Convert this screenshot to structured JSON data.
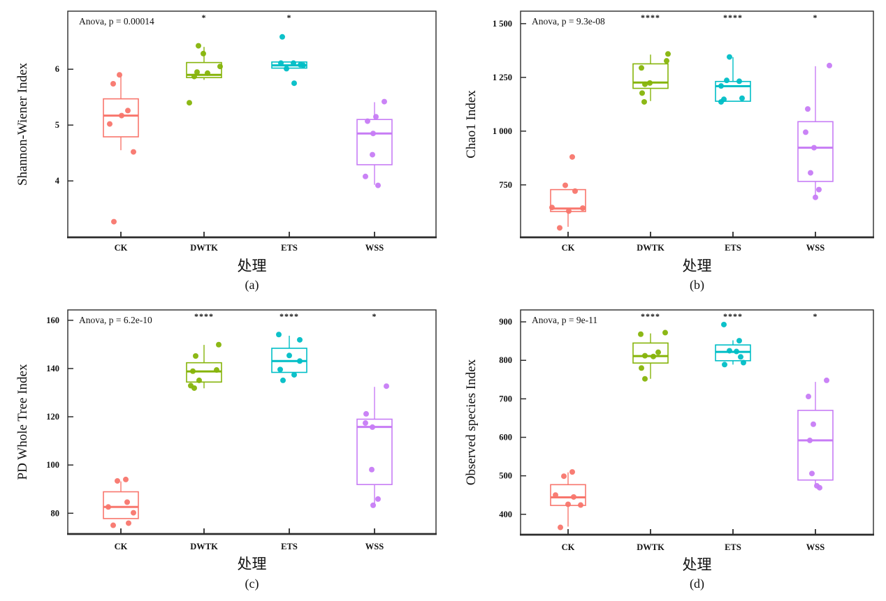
{
  "figure": {
    "background": "#ffffff",
    "axis_color": "#2b2b2b",
    "categories": [
      "CK",
      "DWTK",
      "ETS",
      "WSS"
    ],
    "group_colors": {
      "CK": "#F8766D",
      "DWTK": "#86B40A",
      "ETS": "#00BEC6",
      "WSS": "#C77CF5"
    }
  },
  "chart_data": [
    {
      "type": "boxplot",
      "panel_label": "(a)",
      "ylabel": "Shannon-Wiener Index",
      "xlabel": "处理",
      "annotation": "Anova, p = 0.00014",
      "categories": [
        "CK",
        "DWTK",
        "ETS",
        "WSS"
      ],
      "significance": [
        "",
        "*",
        "*",
        ""
      ],
      "ylim": [
        2.99,
        7.04
      ],
      "grid": false,
      "yticks": [
        {
          "v": 4,
          "label": "4"
        },
        {
          "v": 5,
          "label": "5"
        },
        {
          "v": 6,
          "label": "6"
        }
      ],
      "groups": [
        {
          "name": "CK",
          "color": "#F8766D",
          "q1": 4.79,
          "median": 5.17,
          "q3": 5.47,
          "whisker_low": 4.55,
          "whisker_high": 5.87,
          "points": [
            [
              5.9,
              -2
            ],
            [
              5.74,
              -11
            ],
            [
              5.26,
              10
            ],
            [
              5.17,
              1
            ],
            [
              5.02,
              -16
            ],
            [
              4.52,
              18
            ],
            [
              3.27,
              -10
            ]
          ]
        },
        {
          "name": "DWTK",
          "color": "#86B40A",
          "q1": 5.85,
          "median": 5.9,
          "q3": 6.12,
          "whisker_low": 5.81,
          "whisker_high": 6.4,
          "points": [
            [
              6.42,
              -8
            ],
            [
              6.28,
              -1
            ],
            [
              6.05,
              23
            ],
            [
              5.95,
              -10
            ],
            [
              5.93,
              5
            ],
            [
              5.87,
              -14
            ],
            [
              5.4,
              -21
            ]
          ]
        },
        {
          "name": "ETS",
          "color": "#00BEC6",
          "q1": 6.02,
          "median": 6.07,
          "q3": 6.13,
          "whisker_low": 6.02,
          "whisker_high": 6.13,
          "points": [
            [
              6.58,
              -10
            ],
            [
              6.11,
              -12
            ],
            [
              6.11,
              6
            ],
            [
              6.08,
              16
            ],
            [
              6.07,
              20
            ],
            [
              6.01,
              -4
            ],
            [
              5.75,
              7
            ]
          ]
        },
        {
          "name": "WSS",
          "color": "#C77CF5",
          "q1": 4.29,
          "median": 4.85,
          "q3": 5.1,
          "whisker_low": 3.93,
          "whisker_high": 5.41,
          "points": [
            [
              5.42,
              14
            ],
            [
              5.15,
              2
            ],
            [
              5.07,
              -10
            ],
            [
              4.85,
              -2
            ],
            [
              4.47,
              -3
            ],
            [
              4.08,
              -13
            ],
            [
              3.92,
              5
            ]
          ]
        }
      ]
    },
    {
      "type": "boxplot",
      "panel_label": "(b)",
      "ylabel": "Chao1 Index",
      "xlabel": "处理",
      "annotation": "Anova, p = 9.3e-08",
      "categories": [
        "CK",
        "DWTK",
        "ETS",
        "WSS"
      ],
      "significance": [
        "",
        "****",
        "****",
        "*"
      ],
      "ylim": [
        506,
        1558
      ],
      "grid": false,
      "yticks": [
        {
          "v": 750,
          "label": "750"
        },
        {
          "v": 1000,
          "label": "1 000"
        },
        {
          "v": 1250,
          "label": "1 250"
        },
        {
          "v": 1500,
          "label": "1 500"
        }
      ],
      "groups": [
        {
          "name": "CK",
          "color": "#F8766D",
          "q1": 626,
          "median": 640,
          "q3": 728,
          "whisker_low": 555,
          "whisker_high": 728,
          "points": [
            [
              880,
              6
            ],
            [
              748,
              -4
            ],
            [
              721,
              10
            ],
            [
              645,
              -23
            ],
            [
              642,
              21
            ],
            [
              628,
              1
            ],
            [
              550,
              -12
            ]
          ]
        },
        {
          "name": "DWTK",
          "color": "#86B40A",
          "q1": 1199,
          "median": 1226,
          "q3": 1313,
          "whisker_low": 1140,
          "whisker_high": 1356,
          "points": [
            [
              1359,
              25
            ],
            [
              1327,
              23
            ],
            [
              1294,
              -13
            ],
            [
              1224,
              -1
            ],
            [
              1218,
              -8
            ],
            [
              1177,
              -12
            ],
            [
              1136,
              -9
            ]
          ]
        },
        {
          "name": "ETS",
          "color": "#00BEC6",
          "q1": 1139,
          "median": 1209,
          "q3": 1231,
          "whisker_low": 1139,
          "whisker_high": 1344,
          "points": [
            [
              1345,
              -5
            ],
            [
              1236,
              -9
            ],
            [
              1232,
              9
            ],
            [
              1210,
              -17
            ],
            [
              1153,
              13
            ],
            [
              1148,
              -13
            ],
            [
              1136,
              -17
            ]
          ]
        },
        {
          "name": "WSS",
          "color": "#C77CF5",
          "q1": 766,
          "median": 923,
          "q3": 1044,
          "whisker_low": 696,
          "whisker_high": 1302,
          "points": [
            [
              1305,
              20
            ],
            [
              1103,
              -11
            ],
            [
              995,
              -14
            ],
            [
              923,
              -2
            ],
            [
              806,
              -7
            ],
            [
              728,
              5
            ],
            [
              692,
              0
            ]
          ]
        }
      ]
    },
    {
      "type": "boxplot",
      "panel_label": "(c)",
      "ylabel": "PD Whole Tree Index",
      "xlabel": "处理",
      "annotation": "Anova, p = 6.2e-10",
      "categories": [
        "CK",
        "DWTK",
        "ETS",
        "WSS"
      ],
      "significance": [
        "",
        "****",
        "****",
        "*"
      ],
      "ylim": [
        71.4,
        164.3
      ],
      "grid": false,
      "yticks": [
        {
          "v": 80,
          "label": "80"
        },
        {
          "v": 100,
          "label": "100"
        },
        {
          "v": 120,
          "label": "120"
        },
        {
          "v": 140,
          "label": "140"
        },
        {
          "v": 160,
          "label": "160"
        }
      ],
      "groups": [
        {
          "name": "CK",
          "color": "#F8766D",
          "q1": 77.8,
          "median": 82.6,
          "q3": 88.9,
          "whisker_low": 77.8,
          "whisker_high": 93.2,
          "points": [
            [
              94,
              7
            ],
            [
              93.4,
              -5
            ],
            [
              84.6,
              9
            ],
            [
              82.6,
              -18
            ],
            [
              80.2,
              18
            ],
            [
              75.9,
              11
            ],
            [
              75,
              -11
            ]
          ]
        },
        {
          "name": "DWTK",
          "color": "#86B40A",
          "q1": 134.4,
          "median": 138.8,
          "q3": 142.4,
          "whisker_low": 131.8,
          "whisker_high": 149.8,
          "points": [
            [
              149.9,
              21
            ],
            [
              145.2,
              -12
            ],
            [
              139.4,
              18
            ],
            [
              138.9,
              -16
            ],
            [
              135.1,
              -7
            ],
            [
              132.9,
              -19
            ],
            [
              131.9,
              -14
            ]
          ]
        },
        {
          "name": "ETS",
          "color": "#00BEC6",
          "q1": 138.4,
          "median": 143.1,
          "q3": 148.4,
          "whisker_low": 138.4,
          "whisker_high": 153.6,
          "points": [
            [
              154.1,
              -15
            ],
            [
              151.9,
              15
            ],
            [
              145.4,
              0
            ],
            [
              143.1,
              15
            ],
            [
              139.6,
              -13
            ],
            [
              137.4,
              7
            ],
            [
              135.1,
              -9
            ]
          ]
        },
        {
          "name": "WSS",
          "color": "#C77CF5",
          "q1": 91.9,
          "median": 115.8,
          "q3": 119,
          "whisker_low": 83.8,
          "whisker_high": 132.4,
          "points": [
            [
              132.7,
              17
            ],
            [
              121.2,
              -12
            ],
            [
              117.4,
              -13
            ],
            [
              115.7,
              -3
            ],
            [
              98.1,
              -4
            ],
            [
              85.9,
              5
            ],
            [
              83.3,
              -2
            ]
          ]
        }
      ]
    },
    {
      "type": "boxplot",
      "panel_label": "(d)",
      "ylabel": "Observed species Index",
      "xlabel": "处理",
      "annotation": "Anova, p = 9e-11",
      "categories": [
        "CK",
        "DWTK",
        "ETS",
        "WSS"
      ],
      "significance": [
        "",
        "****",
        "****",
        "*"
      ],
      "ylim": [
        347,
        931
      ],
      "grid": false,
      "yticks": [
        {
          "v": 400,
          "label": "400"
        },
        {
          "v": 500,
          "label": "500"
        },
        {
          "v": 600,
          "label": "600"
        },
        {
          "v": 700,
          "label": "700"
        },
        {
          "v": 800,
          "label": "800"
        },
        {
          "v": 900,
          "label": "900"
        }
      ],
      "groups": [
        {
          "name": "CK",
          "color": "#F8766D",
          "q1": 423,
          "median": 444,
          "q3": 477,
          "whisker_low": 368,
          "whisker_high": 509,
          "points": [
            [
              510,
              6
            ],
            [
              499,
              -6
            ],
            [
              450,
              -18
            ],
            [
              445,
              8
            ],
            [
              426,
              0
            ],
            [
              424,
              18
            ],
            [
              366,
              -11
            ]
          ]
        },
        {
          "name": "DWTK",
          "color": "#86B40A",
          "q1": 793,
          "median": 811,
          "q3": 845,
          "whisker_low": 752,
          "whisker_high": 870,
          "points": [
            [
              872,
              21
            ],
            [
              868,
              -14
            ],
            [
              821,
              11
            ],
            [
              812,
              -8
            ],
            [
              810,
              4
            ],
            [
              780,
              -13
            ],
            [
              752,
              -8
            ]
          ]
        },
        {
          "name": "ETS",
          "color": "#00BEC6",
          "q1": 799,
          "median": 822,
          "q3": 840,
          "whisker_low": 789,
          "whisker_high": 852,
          "points": [
            [
              893,
              -13
            ],
            [
              851,
              9
            ],
            [
              825,
              -5
            ],
            [
              823,
              5
            ],
            [
              809,
              11
            ],
            [
              794,
              15
            ],
            [
              789,
              -12
            ]
          ]
        },
        {
          "name": "WSS",
          "color": "#C77CF5",
          "q1": 489,
          "median": 592,
          "q3": 670,
          "whisker_low": 478,
          "whisker_high": 744,
          "points": [
            [
              748,
              16
            ],
            [
              706,
              -10
            ],
            [
              634,
              -3
            ],
            [
              592,
              -8
            ],
            [
              506,
              -5
            ],
            [
              474,
              2
            ],
            [
              469,
              6
            ]
          ]
        }
      ]
    }
  ]
}
